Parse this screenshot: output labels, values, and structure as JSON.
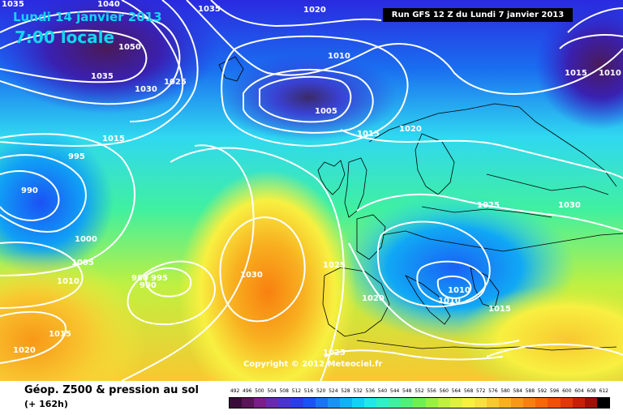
{
  "header": {
    "date": "Lundi 14 janvier 2013",
    "time": "7:00 locale",
    "run": "Run GFS 12 Z du Lundi 7 janvier 2013"
  },
  "footer": {
    "title": "Géop. Z500 & pression au sol",
    "subtitle": "(+ 162h)",
    "copyright": "Copyright © 2012 Meteociel.fr"
  },
  "isobar_labels": [
    {
      "id": "l1035a",
      "text": "1035"
    },
    {
      "id": "l1040",
      "text": "1040"
    },
    {
      "id": "l1035b",
      "text": "1035"
    },
    {
      "id": "l1020a",
      "text": "1020"
    },
    {
      "id": "l1050",
      "text": "1050"
    },
    {
      "id": "l1010a",
      "text": "1010"
    },
    {
      "id": "l1035c",
      "text": "1035"
    },
    {
      "id": "l1030a",
      "text": "1030"
    },
    {
      "id": "l1025a",
      "text": "1025"
    },
    {
      "id": "l1015a",
      "text": "1015"
    },
    {
      "id": "l1010b",
      "text": "1010"
    },
    {
      "id": "l1005a",
      "text": "1005"
    },
    {
      "id": "l1015b",
      "text": "1015"
    },
    {
      "id": "l1020b",
      "text": "1020"
    },
    {
      "id": "l1015c",
      "text": "1015"
    },
    {
      "id": "l995",
      "text": "995"
    },
    {
      "id": "l990",
      "text": "990"
    },
    {
      "id": "l1025b",
      "text": "1025"
    },
    {
      "id": "l1030b",
      "text": "1030"
    },
    {
      "id": "l1000",
      "text": "1000"
    },
    {
      "id": "l1005b",
      "text": "1005"
    },
    {
      "id": "l1010c",
      "text": "1010"
    },
    {
      "id": "l980",
      "text": "980"
    },
    {
      "id": "l995b",
      "text": "995"
    },
    {
      "id": "l990b",
      "text": "990"
    },
    {
      "id": "l1030c",
      "text": "1030"
    },
    {
      "id": "l1025c",
      "text": "1025"
    },
    {
      "id": "l1010d",
      "text": "1010"
    },
    {
      "id": "l1020c",
      "text": "1020"
    },
    {
      "id": "l1010e",
      "text": "1010"
    },
    {
      "id": "l1015d",
      "text": "1015"
    },
    {
      "id": "l1015e",
      "text": "1015"
    },
    {
      "id": "l1025d",
      "text": "1025"
    },
    {
      "id": "l1020d",
      "text": "1020"
    }
  ],
  "legend": {
    "values": [
      "492",
      "496",
      "500",
      "504",
      "508",
      "512",
      "516",
      "520",
      "524",
      "528",
      "532",
      "536",
      "540",
      "544",
      "548",
      "552",
      "556",
      "560",
      "564",
      "568",
      "572",
      "576",
      "580",
      "584",
      "588",
      "592",
      "596",
      "600",
      "604",
      "608",
      "612"
    ],
    "colors": [
      "#3a0a3a",
      "#5a145a",
      "#7a1e8a",
      "#6a2ab0",
      "#4a34d0",
      "#2a3ee8",
      "#1a52f5",
      "#1a72f5",
      "#1a92f5",
      "#10b2f5",
      "#10d2f5",
      "#20e8e8",
      "#30f0c8",
      "#40f0a0",
      "#50f078",
      "#70f050",
      "#98f040",
      "#c0f040",
      "#e0f040",
      "#f8f040",
      "#f8e040",
      "#f8c830",
      "#f8b020",
      "#f89818",
      "#f88010",
      "#f86808",
      "#f05008",
      "#e03808",
      "#c82008",
      "#a01008",
      "#000000"
    ]
  }
}
